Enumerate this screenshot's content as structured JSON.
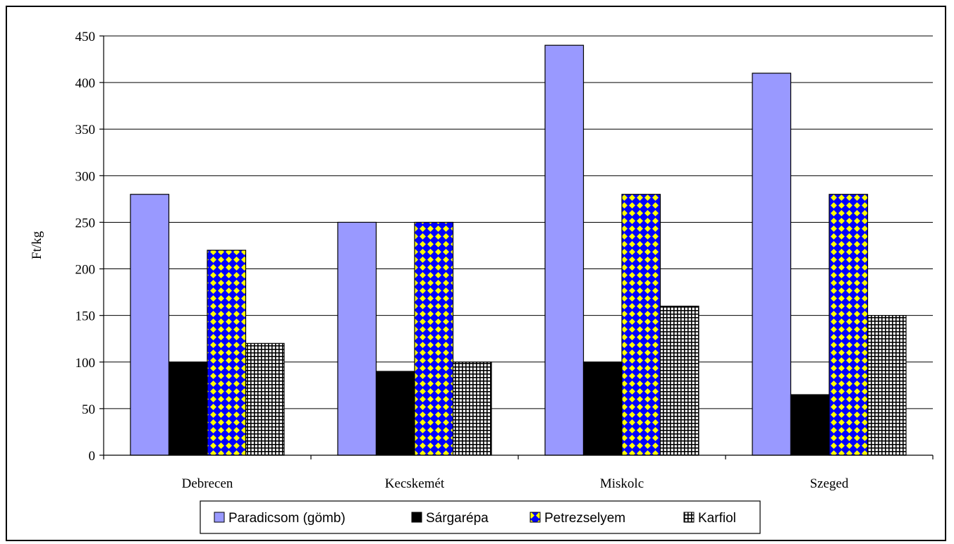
{
  "chart_data": {
    "type": "bar",
    "categories": [
      "Debrecen",
      "Kecskemét",
      "Miskolc",
      "Szeged"
    ],
    "series": [
      {
        "name": "Paradicsom (gömb)",
        "values": [
          280,
          250,
          440,
          410
        ],
        "color": "#9999ff",
        "pattern": "solid"
      },
      {
        "name": "Sárgarépa",
        "values": [
          100,
          90,
          100,
          65
        ],
        "color": "#000000",
        "pattern": "solid"
      },
      {
        "name": "Petrezselyem",
        "values": [
          220,
          250,
          280,
          280
        ],
        "color": "#0000ff",
        "pattern": "yellow-diamonds"
      },
      {
        "name": "Karfiol",
        "values": [
          120,
          100,
          160,
          150
        ],
        "color": "#000000",
        "pattern": "white-grid"
      }
    ],
    "ylabel": "Ft/kg",
    "ylim": [
      0,
      450
    ],
    "yticks": [
      0,
      50,
      100,
      150,
      200,
      250,
      300,
      350,
      400,
      450
    ],
    "grid": true,
    "legend": "bottom"
  }
}
